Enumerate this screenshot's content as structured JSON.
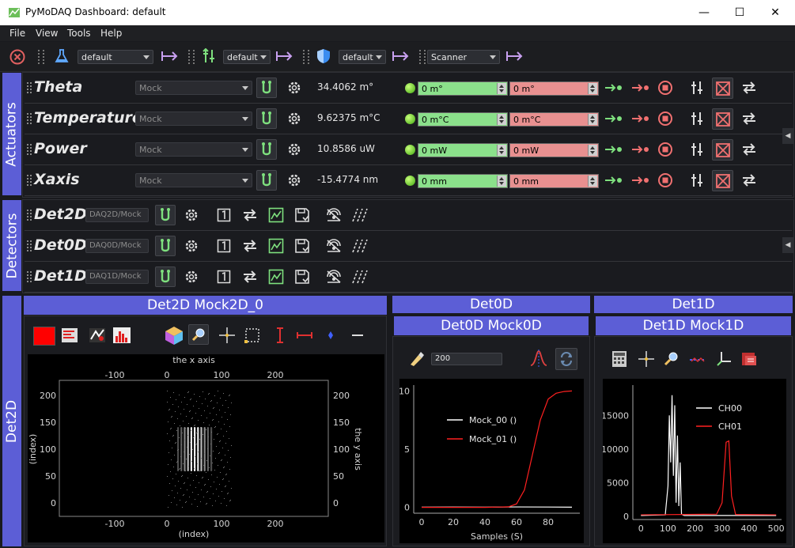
{
  "window": {
    "title": "PyMoDAQ Dashboard: default",
    "minimize": "—",
    "maximize": "☐",
    "close": "✕"
  },
  "menu": [
    "File",
    "View",
    "Tools",
    "Help"
  ],
  "toolbar": {
    "preset1": "default",
    "preset2": "default",
    "preset3": "default",
    "extension": "Scanner"
  },
  "docks": {
    "actuators": "Actuators",
    "detectors": "Detectors",
    "det2d": "Det2D"
  },
  "actuators": [
    {
      "name": "Theta",
      "plugin": "Mock",
      "position": "34.4062 m°",
      "target": "0 m°",
      "rel": "0 m°"
    },
    {
      "name": "Temperature",
      "plugin": "Mock",
      "position": "9.62375 m°C",
      "target": "0 m°C",
      "rel": "0 m°C"
    },
    {
      "name": "Power",
      "plugin": "Mock",
      "position": "10.8586 uW",
      "target": "0 mW",
      "rel": "0 mW"
    },
    {
      "name": "Xaxis",
      "plugin": "Mock",
      "position": "-15.4774 nm",
      "target": "0 mm",
      "rel": "0 mm"
    }
  ],
  "detectors": [
    {
      "name": "Det2D",
      "plugin": "DAQ2D/Mock"
    },
    {
      "name": "Det0D",
      "plugin": "DAQ0D/Mock"
    },
    {
      "name": "Det1D",
      "plugin": "DAQ1D/Mock"
    }
  ],
  "viewers": {
    "det2d_title": "Det2D Mock2D_0",
    "det0d_outer": "Det0D",
    "det0d_title": "Det0D Mock0D",
    "det1d_outer": "Det1D",
    "det1d_title": "Det1D Mock1D",
    "det0d_spin": "200",
    "det2d_top_label": "the x axis",
    "det2d_bottom_label": "(index)",
    "det2d_left_label": "(index)",
    "det2d_right_label": "the y axis",
    "det2d_top_ticks": [
      "-100",
      "0",
      "100",
      "200"
    ],
    "det2d_bottom_ticks": [
      "-100",
      "0",
      "100",
      "200"
    ],
    "det2d_left_ticks": [
      "200",
      "150",
      "100",
      "50",
      "0"
    ],
    "det2d_right_ticks": [
      "200",
      "150",
      "100",
      "50",
      "0"
    ],
    "det0d_xlabel": "Samples (S)",
    "det0d_xticks": [
      "0",
      "20",
      "40",
      "60",
      "80"
    ],
    "det0d_yticks": [
      "10",
      "5",
      "0"
    ],
    "det0d_legend": [
      "Mock_00 ()",
      "Mock_01 ()"
    ],
    "det1d_xticks": [
      "0",
      "100",
      "200",
      "300",
      "400",
      "500"
    ],
    "det1d_yticks": [
      "15000",
      "10000",
      "5000",
      "0"
    ],
    "det1d_legend": [
      "CH00",
      "CH01"
    ]
  },
  "colors": {
    "accent": "#5c5ed6",
    "green": "#8be08b",
    "red": "#e89090",
    "icon_green": "#7ee07e",
    "icon_purple": "#c8a0f0"
  },
  "chart_data": [
    {
      "type": "line",
      "title": "",
      "xlabel": "Samples (S)",
      "ylabel": "",
      "xlim": [
        -5,
        100
      ],
      "ylim": [
        -0.5,
        10.5
      ],
      "series": [
        {
          "name": "Mock_00 ()",
          "x": [
            0,
            20,
            40,
            60,
            80,
            95
          ],
          "y": [
            0.02,
            0.03,
            0.02,
            0.04,
            0.03,
            0.02
          ]
        },
        {
          "name": "Mock_01 ()",
          "x": [
            0,
            20,
            40,
            55,
            60,
            65,
            70,
            75,
            80,
            85,
            90,
            95
          ],
          "y": [
            0,
            0,
            0,
            0.05,
            0.3,
            1.5,
            4.5,
            7.5,
            9.3,
            9.8,
            9.95,
            10
          ]
        }
      ]
    },
    {
      "type": "line",
      "title": "",
      "xlabel": "",
      "ylabel": "",
      "xlim": [
        -30,
        520
      ],
      "ylim": [
        -500,
        19500
      ],
      "series": [
        {
          "name": "CH00",
          "x": [
            0,
            90,
            100,
            105,
            110,
            115,
            120,
            125,
            130,
            135,
            140,
            145,
            150,
            160,
            500
          ],
          "y": [
            100,
            200,
            4500,
            15000,
            8000,
            18000,
            6000,
            16500,
            2000,
            12000,
            1500,
            8000,
            300,
            100,
            100
          ]
        },
        {
          "name": "CH01",
          "x": [
            0,
            280,
            300,
            315,
            325,
            335,
            350,
            500
          ],
          "y": [
            200,
            300,
            2000,
            11000,
            11200,
            3000,
            250,
            200
          ]
        }
      ]
    }
  ]
}
